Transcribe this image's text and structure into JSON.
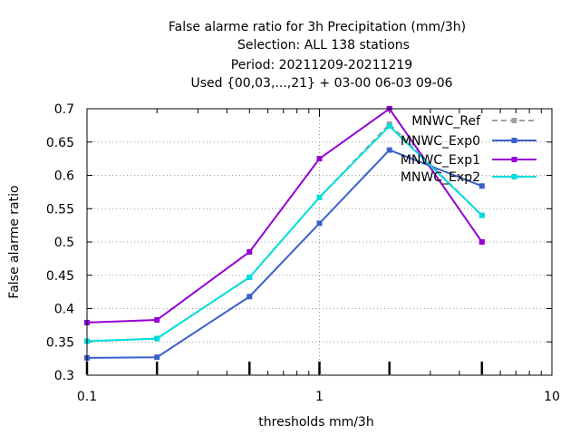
{
  "chart_data": {
    "type": "line",
    "title_lines": [
      "False alarme ratio  for 3h Precipitation (mm/3h)",
      "Selection: ALL    138 stations",
      "Period: 20211209-20211219",
      "Used {00,03,...,21} + 03-00 06-03 09-06"
    ],
    "xlabel": "thresholds mm/3h",
    "ylabel": "False alarme ratio",
    "x_scale": "log",
    "xlim": [
      0.1,
      10
    ],
    "ylim": [
      0.3,
      0.7
    ],
    "x_ticks": [
      0.1,
      1,
      10
    ],
    "x_tick_labels": [
      "0.1",
      "1",
      "10"
    ],
    "y_ticks": [
      0.3,
      0.35,
      0.4,
      0.45,
      0.5,
      0.55,
      0.6,
      0.65,
      0.7
    ],
    "y_tick_labels": [
      "0.3",
      "0.35",
      "0.4",
      "0.45",
      "0.5",
      "0.55",
      "0.6",
      "0.65",
      "0.7"
    ],
    "grid": true,
    "legend_position": "top-right",
    "series": [
      {
        "name": "MNWC_Ref",
        "color": "#a0a0a0",
        "dashed": true,
        "x": [
          0.1,
          0.2,
          0.5,
          1,
          2,
          5
        ],
        "y": [
          0.351,
          0.355,
          0.447,
          0.567,
          0.677,
          0.54
        ]
      },
      {
        "name": "MNWC_Exp0",
        "color": "#3a5fcd",
        "dashed": false,
        "x": [
          0.1,
          0.2,
          0.5,
          1,
          2,
          5
        ],
        "y": [
          0.326,
          0.327,
          0.418,
          0.528,
          0.638,
          0.584
        ]
      },
      {
        "name": "MNWC_Exp1",
        "color": "#9400d3",
        "dashed": false,
        "x": [
          0.1,
          0.2,
          0.5,
          1,
          2,
          5
        ],
        "y": [
          0.379,
          0.383,
          0.485,
          0.625,
          0.7,
          0.5
        ]
      },
      {
        "name": "MNWC_Exp2",
        "color": "#00dddd",
        "dashed": false,
        "x": [
          0.1,
          0.2,
          0.5,
          1,
          2,
          5
        ],
        "y": [
          0.351,
          0.355,
          0.447,
          0.567,
          0.674,
          0.54
        ]
      }
    ]
  }
}
